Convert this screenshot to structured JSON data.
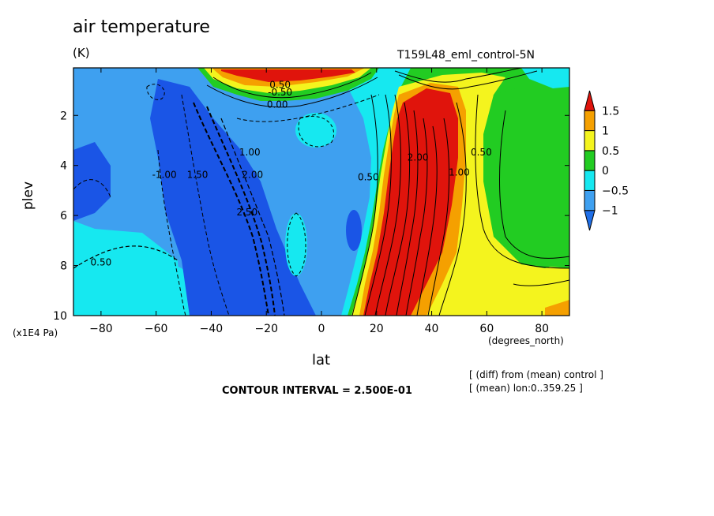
{
  "header": {
    "title": "air temperature",
    "units": "(K)",
    "subtitle": "T159L48_eml_control-5N"
  },
  "footer": {
    "contour_interval": "CONTOUR INTERVAL = 2.500E-01",
    "note_line1": "[ (diff) from (mean) control ]",
    "note_line2": "[ (mean) lon:0..359.25 ]"
  },
  "axes": {
    "xlabel": "lat",
    "ylabel": "plev",
    "x_unit": "(degrees_north)",
    "y_unit": "(x1E4 Pa)"
  },
  "colors": {
    "lt_m1": "#1f6fe8",
    "m1_m05": "#3ea0f0",
    "m05_0": "#16e8f0",
    "0_05": "#22cc22",
    "05_1": "#f4f41e",
    "1_15": "#f5a000",
    "gt_15": "#e0140c",
    "blue_deep": "#1a55e6"
  },
  "chart_data": {
    "type": "heatmap",
    "xlim": [
      -90,
      90
    ],
    "ylim": [
      10,
      0.1
    ],
    "x_ticks": [
      -80,
      -60,
      -40,
      -20,
      0,
      20,
      40,
      60,
      80
    ],
    "x_tick_labels": [
      "−80",
      "−60",
      "−40",
      "−20",
      "0",
      "20",
      "40",
      "60",
      "80"
    ],
    "y_ticks": [
      2,
      4,
      6,
      8,
      10
    ],
    "y_tick_labels": [
      "2",
      "4",
      "6",
      "8",
      "10"
    ],
    "contour_interval": 0.25,
    "colorbar": {
      "levels": [
        -1,
        -0.5,
        0,
        0.5,
        1,
        1.5
      ],
      "labels": [
        "−1",
        "−0.5",
        "0",
        "0.5",
        "1",
        "1.5"
      ],
      "colors": [
        "#1f6fe8",
        "#3ea0f0",
        "#16e8f0",
        "#22cc22",
        "#f4f41e",
        "#f5a000",
        "#e0140c"
      ]
    },
    "contour_labels": [
      {
        "text": "-1.00",
        "lat": -57,
        "p": 4.5
      },
      {
        "text": "1.50",
        "lat": -45,
        "p": 4.5
      },
      {
        "text": "2.00",
        "lat": -25,
        "p": 4.5
      },
      {
        "text": "1.00",
        "lat": -26,
        "p": 3.6
      },
      {
        "text": "2.50",
        "lat": -27,
        "p": 6.0
      },
      {
        "text": "0.50",
        "lat": -80,
        "p": 8.0
      },
      {
        "text": "-0.50",
        "lat": -15,
        "p": 1.2
      },
      {
        "text": "0.50",
        "lat": -15,
        "p": 0.9
      },
      {
        "text": "0.00",
        "lat": -16,
        "p": 1.7
      },
      {
        "text": "0.50",
        "lat": 17,
        "p": 4.6
      },
      {
        "text": "0.50",
        "lat": 58,
        "p": 3.6
      },
      {
        "text": "1.00",
        "lat": 50,
        "p": 4.4
      },
      {
        "text": "2.00",
        "lat": 35,
        "p": 3.8
      }
    ]
  }
}
